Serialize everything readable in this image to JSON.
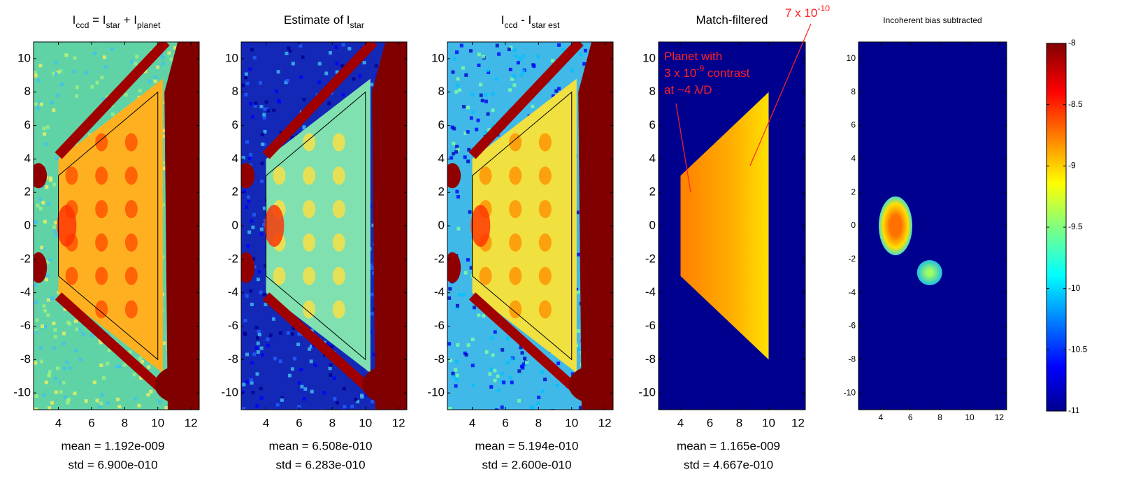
{
  "chart_data": [
    {
      "type": "heatmap",
      "title_parts": [
        {
          "text": "I"
        },
        {
          "sub": "ccd"
        },
        {
          "text": " = I"
        },
        {
          "sub": "star"
        },
        {
          "text": " + I"
        },
        {
          "sub": "planet"
        }
      ],
      "xlim": [
        2.5,
        12.5
      ],
      "ylim": [
        11,
        -11
      ],
      "xticks": [
        4,
        6,
        8,
        10,
        12
      ],
      "yticks": [
        -10,
        -8,
        -6,
        -4,
        -2,
        0,
        2,
        4,
        6,
        8,
        10
      ],
      "stats": [
        "mean = 1.192e-009",
        "std = 6.900e-010"
      ]
    },
    {
      "type": "heatmap",
      "title_parts": [
        {
          "text": "Estimate of I"
        },
        {
          "sub": "star"
        }
      ],
      "xlim": [
        2.5,
        12.5
      ],
      "ylim": [
        11,
        -11
      ],
      "xticks": [
        4,
        6,
        8,
        10,
        12
      ],
      "yticks": [
        -10,
        -8,
        -6,
        -4,
        -2,
        0,
        2,
        4,
        6,
        8,
        10
      ],
      "stats": [
        "mean = 6.508e-010",
        "std = 6.283e-010"
      ]
    },
    {
      "type": "heatmap",
      "title_parts": [
        {
          "text": "I"
        },
        {
          "sub": "ccd"
        },
        {
          "text": " - I"
        },
        {
          "sub": "star est"
        }
      ],
      "xlim": [
        2.5,
        12.5
      ],
      "ylim": [
        11,
        -11
      ],
      "xticks": [
        4,
        6,
        8,
        10,
        12
      ],
      "yticks": [
        -10,
        -8,
        -6,
        -4,
        -2,
        0,
        2,
        4,
        6,
        8,
        10
      ],
      "stats": [
        "mean = 5.194e-010",
        "std = 2.600e-010"
      ]
    },
    {
      "type": "heatmap",
      "title_parts": [
        {
          "text": "Match-filtered"
        }
      ],
      "xlim": [
        2.5,
        12.5
      ],
      "ylim": [
        11,
        -11
      ],
      "xticks": [
        4,
        6,
        8,
        10,
        12
      ],
      "yticks": [
        -10,
        -8,
        -6,
        -4,
        -2,
        0,
        2,
        4,
        6,
        8,
        10
      ],
      "stats": [
        "mean = 1.165e-009",
        "std = 4.667e-010"
      ],
      "annotations": [
        {
          "lines": [
            [
              {
                "text": "Planet with"
              }
            ],
            [
              {
                "text": "3 x 10"
              },
              {
                "sup": "-9"
              },
              {
                "text": " contrast"
              }
            ],
            [
              {
                "text": "at ~4 λ/D"
              }
            ]
          ]
        },
        {
          "lines": [
            [
              {
                "text": "7 x 10"
              },
              {
                "sup": "-10"
              }
            ]
          ]
        }
      ]
    },
    {
      "type": "heatmap",
      "title_parts": [
        {
          "text": "Incoherent bias subtracted"
        }
      ],
      "xlim": [
        2.5,
        12.5
      ],
      "ylim": [
        11,
        -11
      ],
      "xticks": [
        4,
        6,
        8,
        10,
        12
      ],
      "yticks": [
        -10,
        -8,
        -6,
        -4,
        -2,
        0,
        2,
        4,
        6,
        8,
        10
      ]
    },
    {
      "type": "colorbar",
      "ylim": [
        -11,
        -8
      ],
      "yticks": [
        -8,
        -8.5,
        -9,
        -9.5,
        -10,
        -10.5,
        -11
      ]
    }
  ]
}
